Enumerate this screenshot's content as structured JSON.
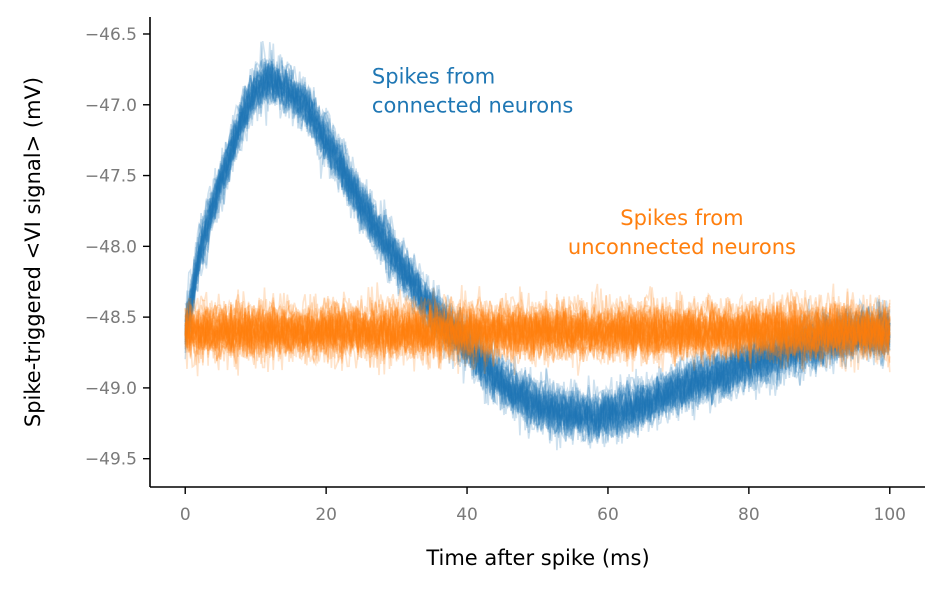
{
  "chart_data": {
    "type": "line",
    "xlabel": "Time after spike (ms)",
    "ylabel": "Spike-triggered <VI signal> (mV)",
    "xlim": [
      -5,
      105
    ],
    "ylim": [
      -49.7,
      -46.38
    ],
    "xticks": [
      0,
      20,
      40,
      60,
      80,
      100
    ],
    "yticks": [
      -46.5,
      -47.0,
      -47.5,
      -48.0,
      -48.5,
      -49.0,
      -49.5
    ],
    "xtick_labels": [
      "0",
      "20",
      "40",
      "60",
      "80",
      "100"
    ],
    "ytick_labels": [
      "−46.5",
      "−47.0",
      "−47.5",
      "−48.0",
      "−48.5",
      "−49.0",
      "−49.5"
    ],
    "grid": false,
    "series": [
      {
        "name": "Spikes from connected neurons",
        "color": "#1f77b4",
        "num_traces": 40,
        "noise_band_mV": 0.12,
        "mean_x": [
          0,
          2,
          5,
          8,
          10,
          11,
          12,
          14,
          17,
          20,
          25,
          30,
          35,
          38,
          42,
          46,
          50,
          54,
          58,
          62,
          66,
          70,
          75,
          80,
          85,
          90,
          95,
          100
        ],
        "mean_y": [
          -48.6,
          -48.05,
          -47.55,
          -47.1,
          -46.9,
          -46.84,
          -46.82,
          -46.88,
          -47.0,
          -47.25,
          -47.7,
          -48.1,
          -48.45,
          -48.6,
          -48.82,
          -49.0,
          -49.12,
          -49.18,
          -49.2,
          -49.17,
          -49.1,
          -49.0,
          -48.92,
          -48.83,
          -48.75,
          -48.68,
          -48.62,
          -48.6
        ]
      },
      {
        "name": "Spikes from unconnected neurons",
        "color": "#ff7f0e",
        "num_traces": 40,
        "noise_band_mV": 0.13,
        "mean_x": [
          0,
          100
        ],
        "mean_y": [
          -48.6,
          -48.6
        ]
      }
    ],
    "annotations": [
      {
        "series": 0,
        "lines": [
          "Spikes from",
          "connected neurons"
        ],
        "x": 26.5,
        "y": -46.85,
        "align": "start",
        "color": "#1f77b4"
      },
      {
        "series": 1,
        "lines": [
          "Spikes from",
          "unconnected neurons"
        ],
        "x": 70.5,
        "y": -47.85,
        "align": "middle",
        "color": "#ff7f0e"
      }
    ]
  }
}
